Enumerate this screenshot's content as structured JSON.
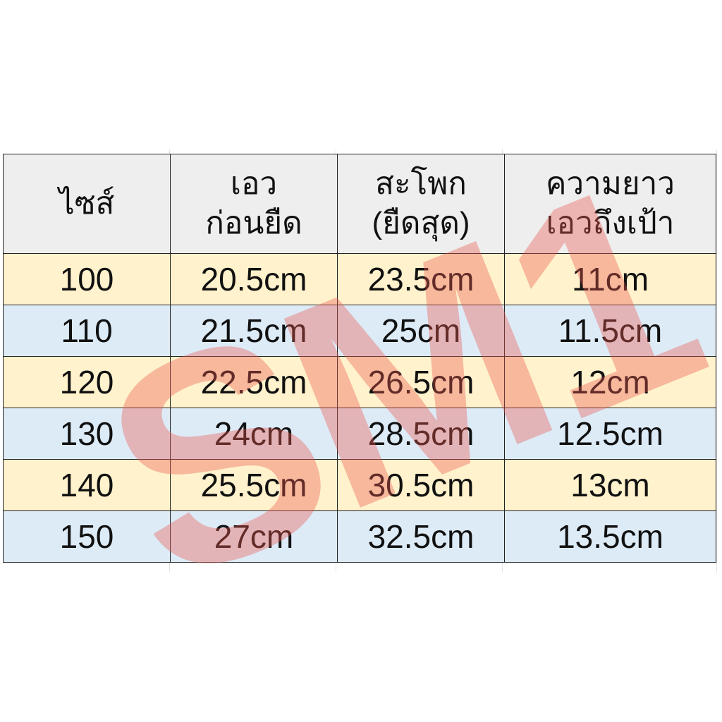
{
  "table": {
    "headers": [
      [
        "ไซส์"
      ],
      [
        "เอว",
        "ก่อนยืด"
      ],
      [
        "สะโพก",
        "(ยืดสุด)"
      ],
      [
        "ความยาว",
        "เอวถึงเป้า"
      ]
    ],
    "rows": [
      [
        "100",
        "20.5cm",
        "23.5cm",
        "11cm"
      ],
      [
        "110",
        "21.5cm",
        "25cm",
        "11.5cm"
      ],
      [
        "120",
        "22.5cm",
        "26.5cm",
        "12cm"
      ],
      [
        "130",
        "24cm",
        "28.5cm",
        "12.5cm"
      ],
      [
        "140",
        "25.5cm",
        "30.5cm",
        "13cm"
      ],
      [
        "150",
        "27cm",
        "32.5cm",
        "13.5cm"
      ]
    ],
    "colors": {
      "header": "#eeeeee",
      "odd_row": "#fff2cc",
      "even_row": "#ddebf7"
    }
  },
  "watermark": "SM1"
}
